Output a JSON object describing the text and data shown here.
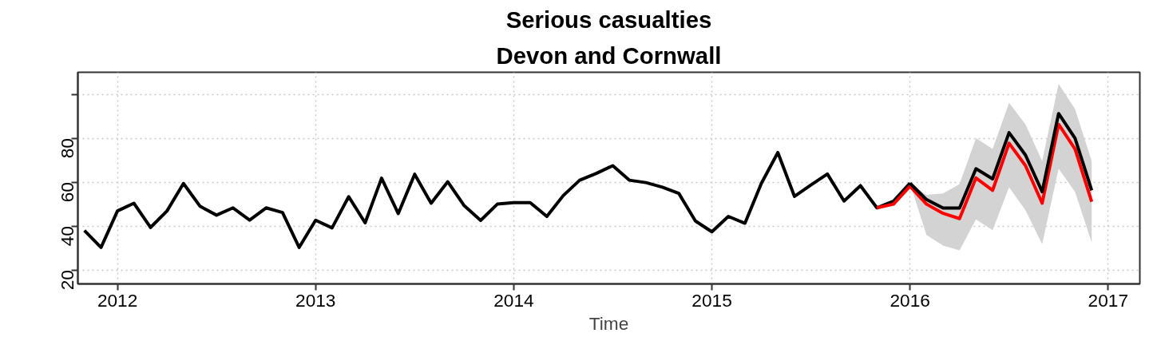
{
  "chart_data": {
    "type": "line",
    "title": "Serious casualties",
    "subtitle": "Devon and Cornwall",
    "xlabel": "Time",
    "xlim": [
      2011.8,
      2017.16
    ],
    "xticks": [
      2012,
      2013,
      2014,
      2015,
      2016,
      2017
    ],
    "ylim": [
      13.7,
      110
    ],
    "yticks": [
      20,
      40,
      60,
      80,
      {
        "value": 100,
        "label": null
      }
    ],
    "grid": true,
    "line_style": "solid",
    "marker": "none",
    "series": [
      {
        "color": "#000000",
        "x": [
          2011.833,
          2011.917,
          2012.0,
          2012.083,
          2012.167,
          2012.25,
          2012.333,
          2012.417,
          2012.5,
          2012.583,
          2012.667,
          2012.75,
          2012.833,
          2012.917,
          2013.0,
          2013.083,
          2013.167,
          2013.25,
          2013.333,
          2013.417,
          2013.5,
          2013.583,
          2013.667,
          2013.75,
          2013.833,
          2013.917,
          2014.0,
          2014.083,
          2014.167,
          2014.25,
          2014.333,
          2014.417,
          2014.5,
          2014.583,
          2014.667,
          2014.75,
          2014.833,
          2014.917,
          2015.0,
          2015.083,
          2015.167,
          2015.25,
          2015.333,
          2015.417,
          2015.5,
          2015.583,
          2015.667,
          2015.75,
          2015.833,
          2015.917,
          2016.0
        ],
        "values": [
          38.0,
          30.3,
          46.9,
          50.4,
          39.4,
          46.9,
          59.4,
          49.0,
          45.0,
          48.3,
          42.7,
          48.3,
          46.2,
          30.3,
          42.7,
          39.2,
          53.4,
          41.5,
          61.8,
          45.7,
          63.6,
          50.4,
          60.2,
          49.3,
          42.6,
          50.0,
          50.7,
          50.7,
          44.4,
          53.9,
          60.9,
          64.0,
          67.5,
          60.9,
          59.8,
          57.7,
          54.9,
          42.3,
          37.4,
          44.4,
          41.3,
          59.5,
          73.5,
          53.5,
          58.7,
          63.7,
          51.4,
          58.4,
          48.3,
          51.4,
          59.5
        ]
      },
      {
        "color": "#ff0000",
        "x": [
          2015.833,
          2015.917,
          2016.0,
          2016.083,
          2016.167,
          2016.25,
          2016.333,
          2016.417,
          2016.5,
          2016.583,
          2016.667,
          2016.75,
          2016.833,
          2016.917
        ],
        "values": [
          48.3,
          50.0,
          58.2,
          50.0,
          45.8,
          43.4,
          61.9,
          56.3,
          77.7,
          67.5,
          50.4,
          86.3,
          75.1,
          51.1
        ]
      },
      {
        "color": "#000000",
        "x": [
          2016.0,
          2016.083,
          2016.167,
          2016.25,
          2016.333,
          2016.417,
          2016.5,
          2016.583,
          2016.667,
          2016.75,
          2016.833,
          2016.917
        ],
        "values": [
          59.5,
          52.1,
          48.2,
          48.2,
          66.1,
          61.5,
          82.5,
          72.3,
          55.6,
          91.2,
          80.0,
          56.3
        ],
        "lower": [
          59.5,
          36.0,
          31.1,
          29.0,
          43.0,
          38.1,
          57.7,
          47.2,
          31.8,
          66.1,
          55.6,
          32.5
        ],
        "upper": [
          59.5,
          54.2,
          54.9,
          59.1,
          80.0,
          75.1,
          96.1,
          86.3,
          69.6,
          104.7,
          93.3,
          69.6
        ]
      }
    ]
  }
}
